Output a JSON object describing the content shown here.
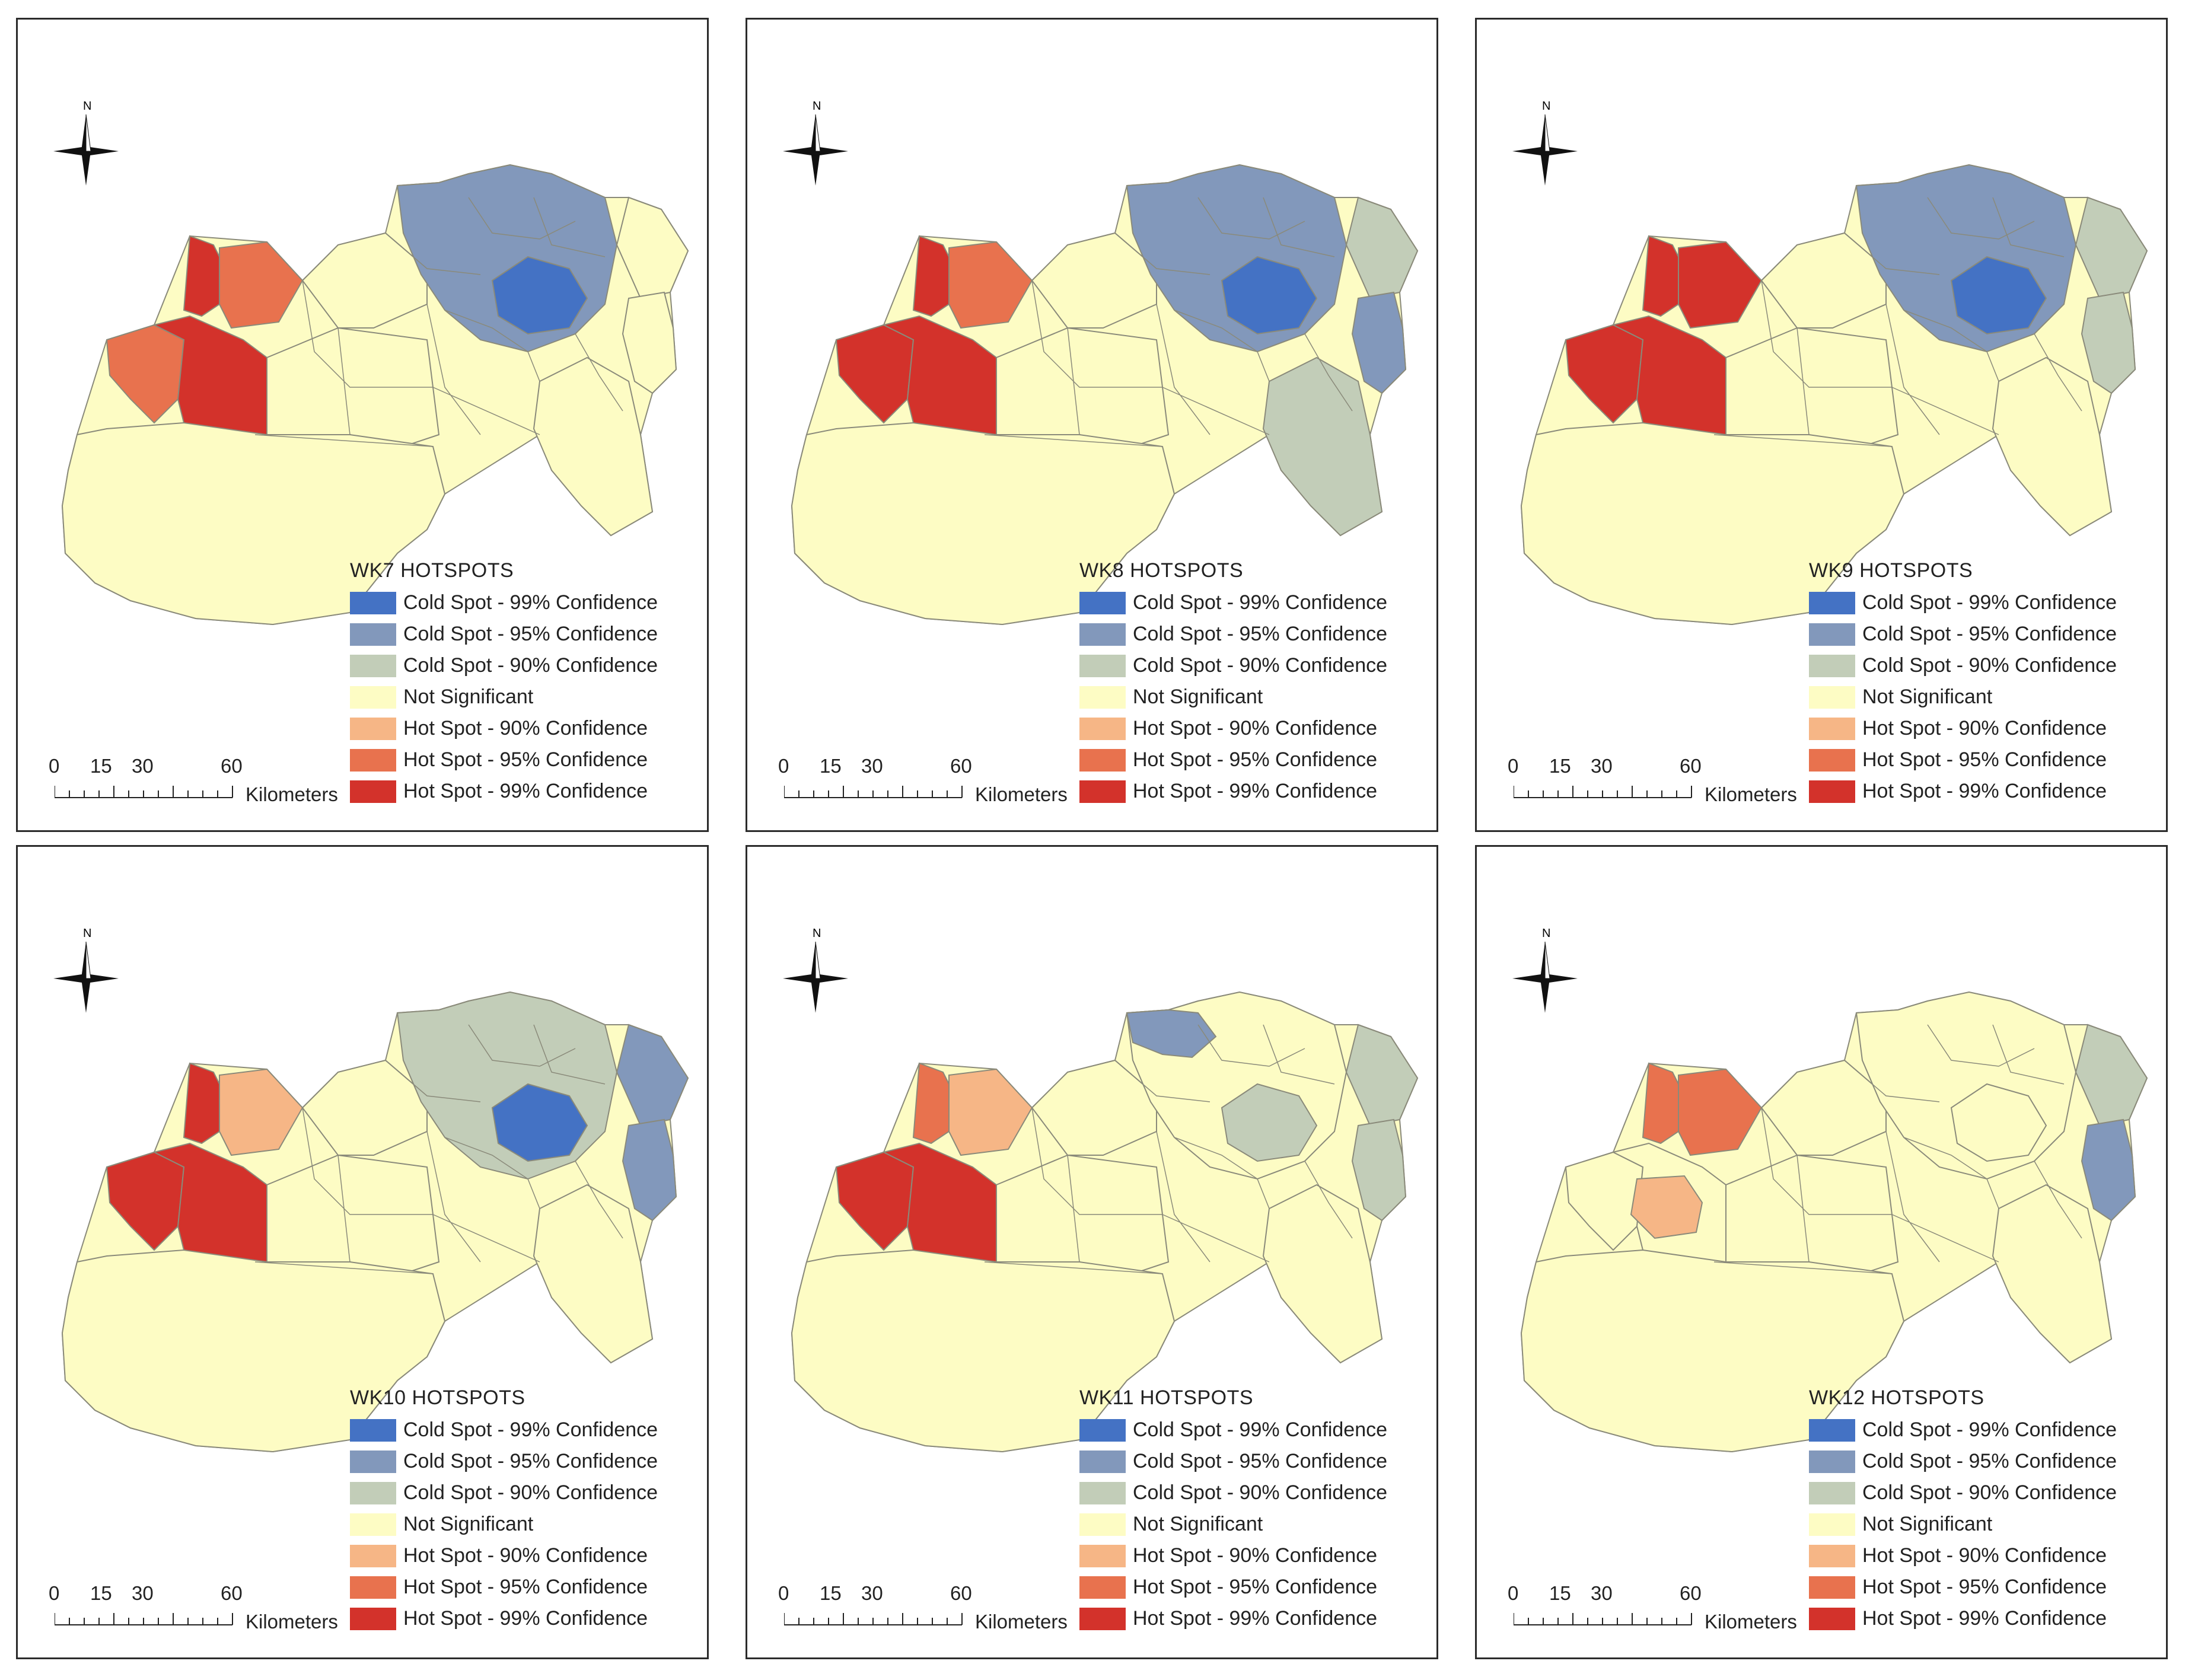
{
  "colors": {
    "cold99": "#4472c4",
    "cold95": "#8298bb",
    "cold90": "#c2cdb8",
    "notsig": "#fdfcc4",
    "hot90": "#f6b686",
    "hot95": "#e8724e",
    "hot99": "#d3322b",
    "border": "#8a8a7a"
  },
  "legend_items": [
    {
      "key": "cold99",
      "label": "Cold Spot - 99% Confidence"
    },
    {
      "key": "cold95",
      "label": "Cold Spot - 95% Confidence"
    },
    {
      "key": "cold90",
      "label": "Cold Spot - 90% Confidence"
    },
    {
      "key": "notsig",
      "label": "Not Significant"
    },
    {
      "key": "hot90",
      "label": "Hot Spot - 90% Confidence"
    },
    {
      "key": "hot95",
      "label": "Hot Spot - 95% Confidence"
    },
    {
      "key": "hot99",
      "label": "Hot Spot - 99% Confidence"
    }
  ],
  "scalebar": {
    "ticks": [
      "0",
      "15",
      "30",
      "60"
    ],
    "units": "Kilometers"
  },
  "north_label": "N",
  "panels": [
    {
      "title": "WK7 HOTSPOTS",
      "regions": {
        "nw_top": "hot99",
        "nw_right": "hot95",
        "west_coast": "hot95",
        "west_center": "hot99",
        "north_center": "notsig",
        "ne_main": "cold95",
        "ne_core": "cold99",
        "ne_east": "notsig",
        "east_strip": "notsig",
        "south_east": "notsig",
        "central_south": "notsig",
        "big_south": "notsig"
      }
    },
    {
      "title": "WK8 HOTSPOTS",
      "regions": {
        "nw_top": "hot99",
        "nw_right": "hot95",
        "west_coast": "hot99",
        "west_center": "hot99",
        "north_center": "notsig",
        "ne_main": "cold95",
        "ne_core": "cold99",
        "ne_east": "cold90",
        "east_strip": "cold95",
        "south_east": "cold90",
        "central_south": "notsig",
        "big_south": "notsig"
      }
    },
    {
      "title": "WK9 HOTSPOTS",
      "regions": {
        "nw_top": "hot99",
        "nw_right": "hot99",
        "west_coast": "hot99",
        "west_center": "hot99",
        "north_center": "notsig",
        "ne_main": "cold95",
        "ne_core": "cold99",
        "ne_east": "cold90",
        "east_strip": "cold90",
        "south_east": "notsig",
        "central_south": "notsig",
        "big_south": "notsig"
      }
    },
    {
      "title": "WK10 HOTSPOTS",
      "regions": {
        "nw_top": "hot99",
        "nw_right": "hot90",
        "west_coast": "hot99",
        "west_center": "hot99",
        "north_center": "notsig",
        "ne_main": "cold90",
        "ne_core": "cold99",
        "ne_east": "cold95",
        "east_strip": "cold95",
        "south_east": "notsig",
        "central_south": "notsig",
        "big_south": "notsig"
      }
    },
    {
      "title": "WK11 HOTSPOTS",
      "regions": {
        "nw_top": "hot95",
        "nw_right": "hot90",
        "west_coast": "hot99",
        "west_center": "hot99",
        "north_center": "notsig",
        "ne_main": "notsig",
        "ne_core": "cold90",
        "ne_east": "cold90",
        "east_strip": "cold90",
        "south_east": "notsig",
        "central_south": "notsig",
        "big_south": "notsig",
        "north_patch": "cold95"
      }
    },
    {
      "title": "WK12 HOTSPOTS",
      "regions": {
        "nw_top": "hot95",
        "nw_right": "hot95",
        "west_coast": "notsig",
        "west_center": "notsig",
        "north_center": "notsig",
        "ne_main": "notsig",
        "ne_core": "notsig",
        "ne_east": "cold90",
        "east_strip": "cold95",
        "south_east": "notsig",
        "central_south": "notsig",
        "big_south": "notsig",
        "west_patch": "hot90"
      }
    }
  ]
}
